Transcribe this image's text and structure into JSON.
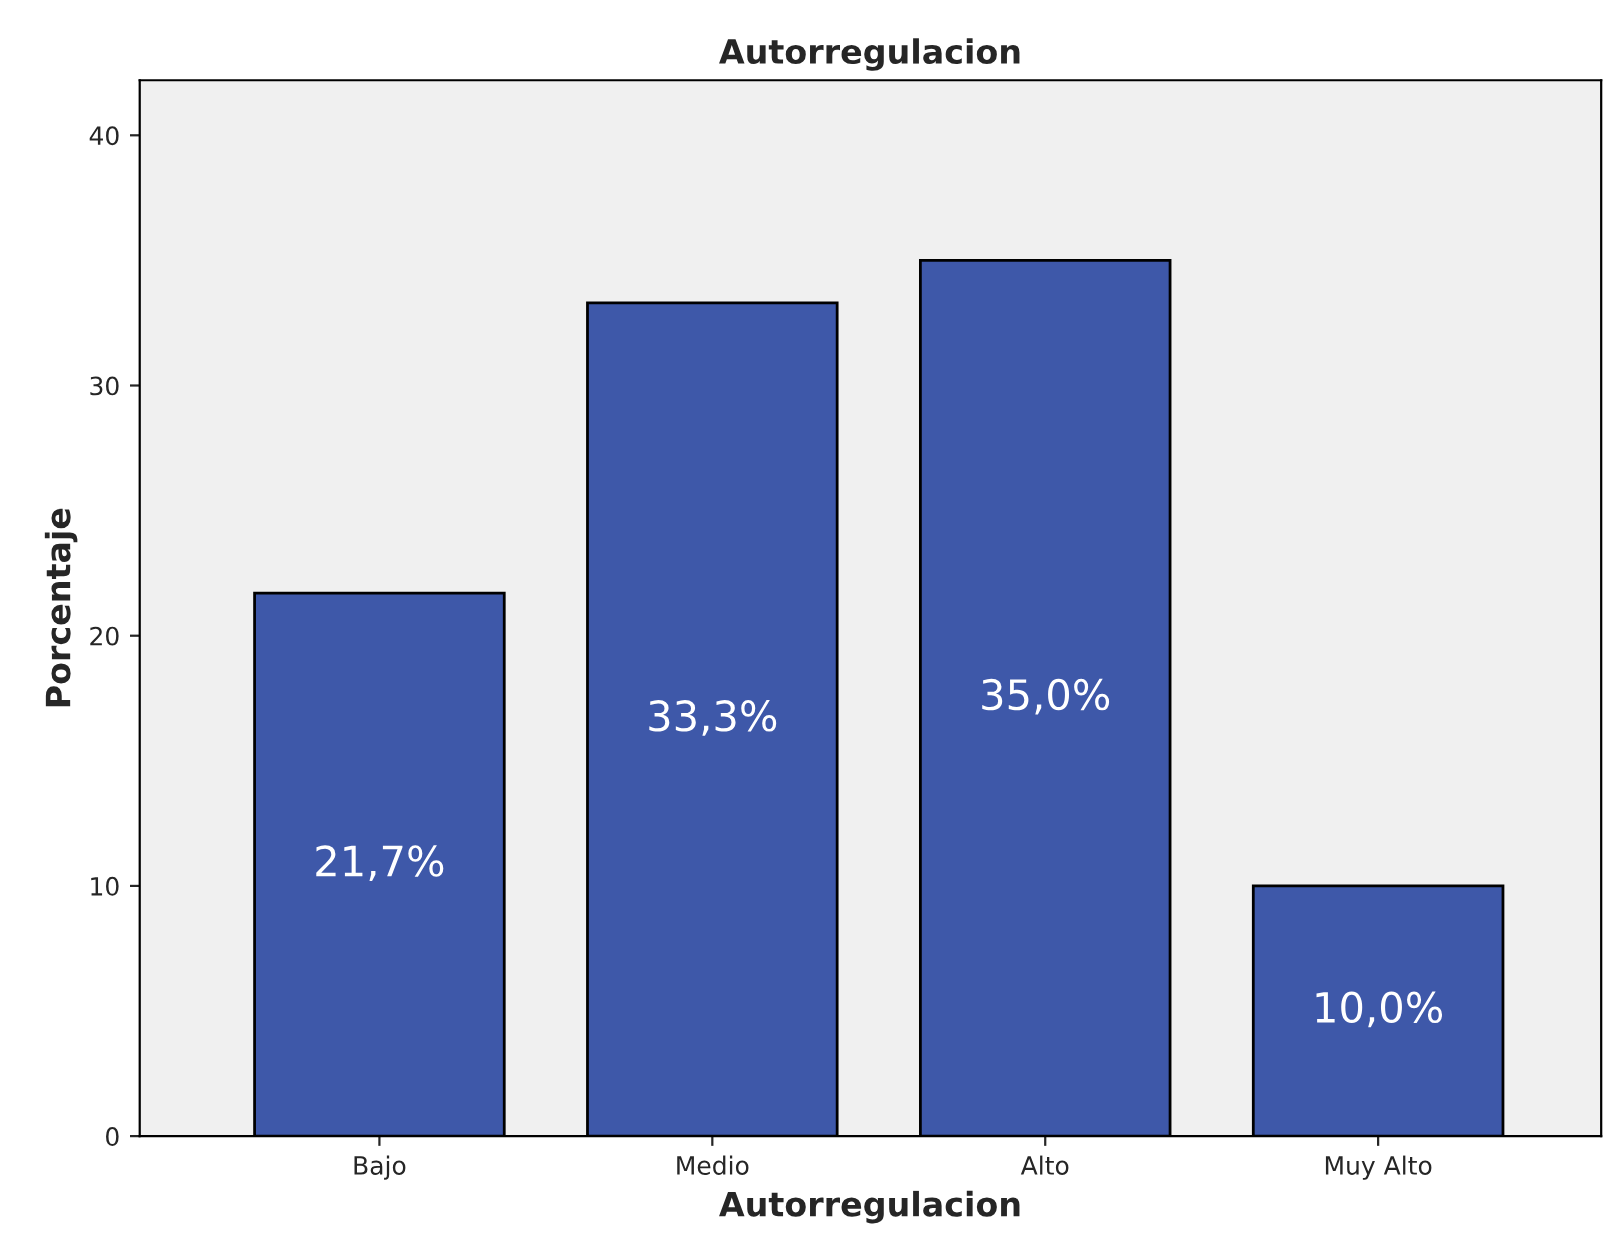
{
  "chart_data": {
    "type": "bar",
    "title": "Autorregulacion",
    "xlabel": "Autorregulacion",
    "ylabel": "Porcentaje",
    "categories": [
      "Bajo",
      "Medio",
      "Alto",
      "Muy Alto"
    ],
    "values": [
      21.7,
      33.3,
      35.0,
      10.0
    ],
    "value_labels": [
      "21,7%",
      "33,3%",
      "35,0%",
      "10,0%"
    ],
    "color": "#3e58a9",
    "ylim": [
      0,
      42.2
    ],
    "yticks": [
      0,
      10,
      20,
      30,
      40
    ],
    "grid": false
  }
}
